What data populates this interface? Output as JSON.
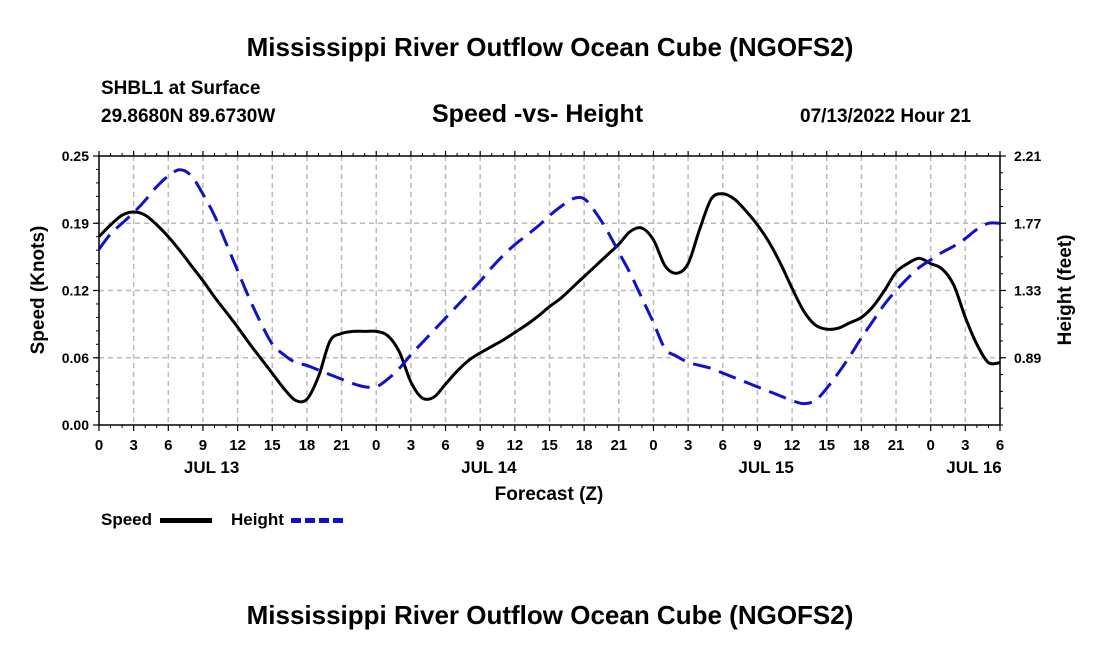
{
  "page": {
    "title": "Mississippi River Outflow Ocean Cube (NGOFS2)",
    "footer_title": "Mississippi River Outflow Ocean Cube (NGOFS2)",
    "station": "SHBL1 at Surface",
    "location": "29.8680N  89.6730W",
    "subtitle": "Speed -vs- Height",
    "datetime": "07/13/2022 Hour 21"
  },
  "chart_data": {
    "type": "line",
    "title": "Speed -vs- Height",
    "xlabel": "Forecast (Z)",
    "ylabel": "Speed (Knots)",
    "y2label": "Height (feet)",
    "x_unit": "hours since JUL 13 00Z",
    "xlim": [
      0,
      78
    ],
    "ylim": [
      0,
      0.25
    ],
    "y2lim": [
      0.45,
      2.21
    ],
    "y_ticks": [
      "0.00",
      "0.06",
      "0.12",
      "0.19",
      "0.25"
    ],
    "y2_ticks": [
      "0.89",
      "1.33",
      "1.77",
      "2.21"
    ],
    "x_tick_labels": [
      "0",
      "3",
      "6",
      "9",
      "12",
      "15",
      "18",
      "21",
      "0",
      "3",
      "6",
      "9",
      "12",
      "15",
      "18",
      "21",
      "0",
      "3",
      "6",
      "9",
      "12",
      "15",
      "18",
      "21",
      "0",
      "3",
      "6"
    ],
    "date_labels": [
      {
        "label": "JUL 13",
        "hour": 9.75
      },
      {
        "label": "JUL 14",
        "hour": 33.75
      },
      {
        "label": "JUL 15",
        "hour": 57.75
      },
      {
        "label": "JUL 16",
        "hour": 75.75
      }
    ],
    "grid": true,
    "legend_position": "bottom-left",
    "series": [
      {
        "name": "Speed",
        "axis": "left",
        "color": "#000000",
        "dash": "solid",
        "x": [
          0,
          1,
          2,
          3,
          4,
          5,
          6,
          7,
          8,
          9,
          10,
          11,
          12,
          13,
          14,
          15,
          16,
          17,
          18,
          19,
          20,
          21,
          22,
          23,
          24,
          25,
          26,
          27,
          28,
          29,
          30,
          31,
          32,
          33,
          34,
          35,
          36,
          37,
          38,
          39,
          40,
          41,
          42,
          43,
          44,
          45,
          46,
          47,
          48,
          49,
          50,
          51,
          52,
          53,
          54,
          55,
          56,
          57,
          58,
          59,
          60,
          61,
          62,
          63,
          64,
          65,
          66,
          67,
          68,
          69,
          70,
          71,
          72,
          73,
          74,
          75,
          76,
          77,
          78
        ],
        "values": [
          0.175,
          0.186,
          0.195,
          0.198,
          0.195,
          0.186,
          0.175,
          0.162,
          0.148,
          0.134,
          0.119,
          0.105,
          0.091,
          0.076,
          0.062,
          0.048,
          0.034,
          0.023,
          0.024,
          0.045,
          0.078,
          0.085,
          0.087,
          0.087,
          0.087,
          0.083,
          0.068,
          0.04,
          0.025,
          0.026,
          0.038,
          0.05,
          0.06,
          0.067,
          0.073,
          0.079,
          0.086,
          0.093,
          0.101,
          0.11,
          0.118,
          0.128,
          0.138,
          0.148,
          0.158,
          0.168,
          0.18,
          0.183,
          0.172,
          0.148,
          0.141,
          0.15,
          0.182,
          0.21,
          0.215,
          0.21,
          0.199,
          0.186,
          0.17,
          0.15,
          0.127,
          0.106,
          0.093,
          0.089,
          0.09,
          0.095,
          0.1,
          0.11,
          0.125,
          0.142,
          0.15,
          0.155,
          0.15,
          0.145,
          0.13,
          0.1,
          0.075,
          0.058,
          0.058
        ]
      },
      {
        "name": "Height",
        "axis": "right",
        "color": "#1111cc",
        "dash": "dashed",
        "x": [
          0,
          1,
          2,
          3,
          4,
          5,
          6,
          7,
          8,
          9,
          10,
          11,
          12,
          13,
          14,
          15,
          16,
          17,
          18,
          19,
          20,
          21,
          22,
          23,
          24,
          25,
          26,
          27,
          28,
          29,
          30,
          31,
          32,
          33,
          34,
          35,
          36,
          37,
          38,
          39,
          40,
          41,
          42,
          43,
          44,
          45,
          46,
          47,
          48,
          49,
          50,
          51,
          52,
          53,
          54,
          55,
          56,
          57,
          58,
          59,
          60,
          61,
          62,
          63,
          64,
          65,
          66,
          67,
          68,
          69,
          70,
          71,
          72,
          73,
          74,
          75,
          76,
          77,
          78
        ],
        "values": [
          1.6,
          1.7,
          1.77,
          1.84,
          1.92,
          2.01,
          2.08,
          2.12,
          2.08,
          1.96,
          1.82,
          1.64,
          1.46,
          1.28,
          1.12,
          0.98,
          0.91,
          0.86,
          0.84,
          0.81,
          0.78,
          0.75,
          0.72,
          0.7,
          0.7,
          0.75,
          0.82,
          0.91,
          0.99,
          1.07,
          1.15,
          1.23,
          1.31,
          1.39,
          1.48,
          1.56,
          1.63,
          1.69,
          1.75,
          1.82,
          1.88,
          1.93,
          1.93,
          1.84,
          1.72,
          1.58,
          1.44,
          1.28,
          1.12,
          0.95,
          0.9,
          0.86,
          0.84,
          0.82,
          0.79,
          0.76,
          0.73,
          0.7,
          0.67,
          0.64,
          0.61,
          0.59,
          0.61,
          0.69,
          0.79,
          0.9,
          1.02,
          1.13,
          1.24,
          1.33,
          1.41,
          1.48,
          1.53,
          1.58,
          1.62,
          1.67,
          1.73,
          1.77,
          1.77
        ]
      }
    ]
  }
}
